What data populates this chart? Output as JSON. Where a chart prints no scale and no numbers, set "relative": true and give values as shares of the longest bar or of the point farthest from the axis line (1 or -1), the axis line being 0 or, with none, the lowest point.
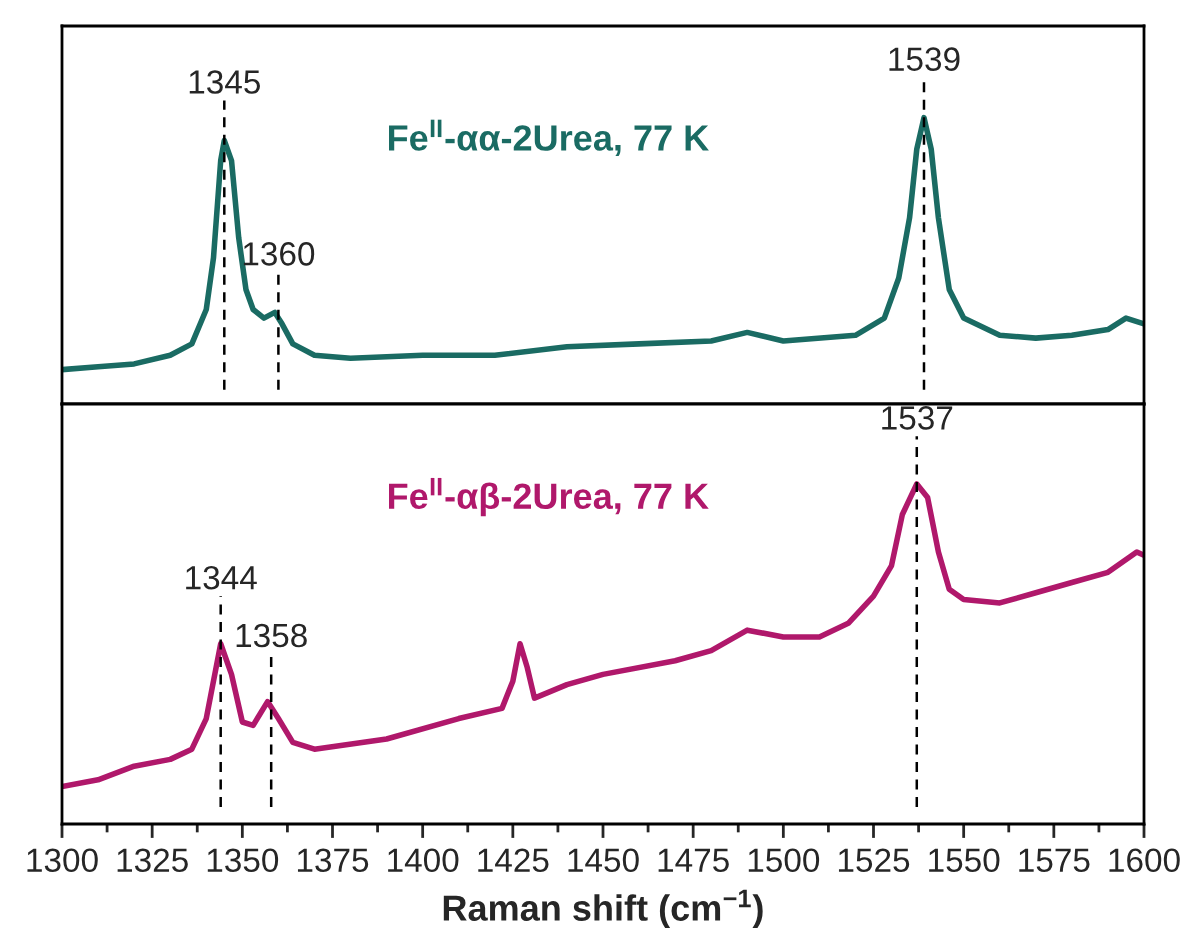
{
  "chart_data": [
    {
      "type": "line",
      "relative": true,
      "xlim": [
        1300,
        1600
      ],
      "tick_labels": false,
      "series": [
        {
          "name": "Fe$^{II}$-αα-2Urea, 77 K",
          "color": "#1a6b63",
          "x": [
            1300,
            1310,
            1320,
            1330,
            1336,
            1340,
            1342,
            1344,
            1345,
            1347,
            1349,
            1351,
            1353,
            1356,
            1359,
            1361,
            1364,
            1370,
            1380,
            1400,
            1420,
            1440,
            1460,
            1480,
            1490,
            1500,
            1520,
            1528,
            1532,
            1535,
            1537,
            1539,
            1541,
            1543,
            1546,
            1550,
            1560,
            1570,
            1580,
            1590,
            1595,
            1600
          ],
          "values": [
            0.12,
            0.13,
            0.14,
            0.17,
            0.21,
            0.33,
            0.51,
            0.85,
            0.92,
            0.85,
            0.58,
            0.4,
            0.33,
            0.3,
            0.32,
            0.28,
            0.21,
            0.17,
            0.16,
            0.17,
            0.17,
            0.2,
            0.21,
            0.22,
            0.25,
            0.22,
            0.24,
            0.3,
            0.44,
            0.65,
            0.89,
            1,
            0.89,
            0.65,
            0.4,
            0.3,
            0.24,
            0.23,
            0.24,
            0.26,
            0.3,
            0.28
          ]
        }
      ],
      "ref_lines": [
        {
          "axis": "x",
          "value": 1345,
          "label": "1345",
          "line_style": "dashed"
        },
        {
          "axis": "x",
          "value": 1360,
          "label": "1360",
          "line_style": "dashed"
        },
        {
          "axis": "x",
          "value": 1539,
          "label": "1539",
          "line_style": "dashed"
        }
      ]
    },
    {
      "type": "line",
      "relative": true,
      "xlim": [
        1300,
        1600
      ],
      "xticks": [
        1300,
        1325,
        1350,
        1375,
        1400,
        1425,
        1450,
        1475,
        1500,
        1525,
        1550,
        1575,
        1600
      ],
      "tick_labels": "x",
      "xlabel": "Raman shift (cm$^{−1}$)",
      "series": [
        {
          "name": "Fe$^{II}$-αβ-2Urea, 77 K",
          "color": "#b0186b",
          "x": [
            1300,
            1310,
            1320,
            1330,
            1336,
            1340,
            1344,
            1347,
            1350,
            1353,
            1357,
            1360,
            1364,
            1370,
            1390,
            1410,
            1422,
            1425,
            1427,
            1429,
            1431,
            1440,
            1450,
            1470,
            1480,
            1490,
            1500,
            1510,
            1518,
            1525,
            1530,
            1533,
            1537,
            1540,
            1543,
            1546,
            1550,
            1560,
            1570,
            1580,
            1590,
            1598,
            1600
          ],
          "values": [
            0.11,
            0.13,
            0.17,
            0.19,
            0.22,
            0.31,
            0.53,
            0.44,
            0.3,
            0.29,
            0.36,
            0.31,
            0.24,
            0.22,
            0.25,
            0.31,
            0.34,
            0.42,
            0.53,
            0.46,
            0.37,
            0.41,
            0.44,
            0.48,
            0.51,
            0.57,
            0.55,
            0.55,
            0.59,
            0.67,
            0.76,
            0.91,
            1,
            0.96,
            0.8,
            0.69,
            0.66,
            0.65,
            0.68,
            0.71,
            0.74,
            0.8,
            0.79
          ]
        }
      ],
      "ref_lines": [
        {
          "axis": "x",
          "value": 1344,
          "label": "1344",
          "line_style": "dashed"
        },
        {
          "axis": "x",
          "value": 1358,
          "label": "1358",
          "line_style": "dashed"
        },
        {
          "axis": "x",
          "value": 1537,
          "label": "1537",
          "line_style": "dashed"
        }
      ]
    }
  ]
}
